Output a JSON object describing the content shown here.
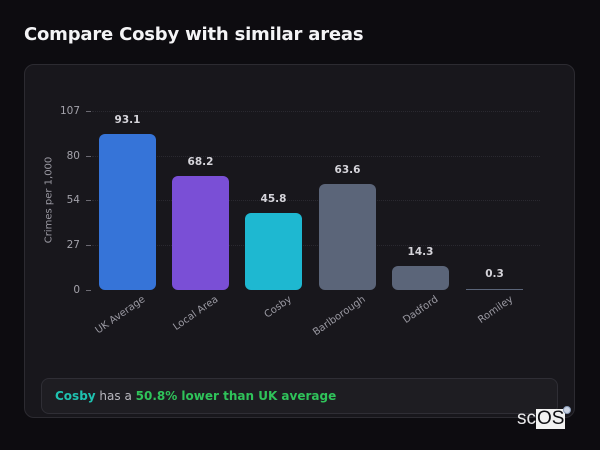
{
  "header": {
    "title": "Compare Cosby with similar areas"
  },
  "chart_data": {
    "type": "bar",
    "title": "Compare Cosby with similar areas",
    "xlabel": "",
    "ylabel": "Crimes per 1,000",
    "ylim": [
      0,
      107
    ],
    "yticks": [
      0,
      27,
      54,
      80,
      107
    ],
    "grid": true,
    "categories": [
      "UK Average",
      "Local Area",
      "Cosby",
      "Barlborough",
      "Dadford",
      "Romiley"
    ],
    "values": [
      93.1,
      68.2,
      45.8,
      63.6,
      14.3,
      0.3
    ],
    "value_labels": [
      "93.1",
      "68.2",
      "45.8",
      "63.6",
      "14.3",
      "0.3"
    ],
    "colors": [
      "#3674d8",
      "#7a4fd6",
      "#1eb8d1",
      "#5b6579",
      "#5b6579",
      "#5b6579"
    ]
  },
  "summary": {
    "place": "Cosby",
    "middle": " has a ",
    "delta": "50.8% lower than UK average"
  },
  "logo": {
    "part1": "sc",
    "part2": "OS"
  }
}
